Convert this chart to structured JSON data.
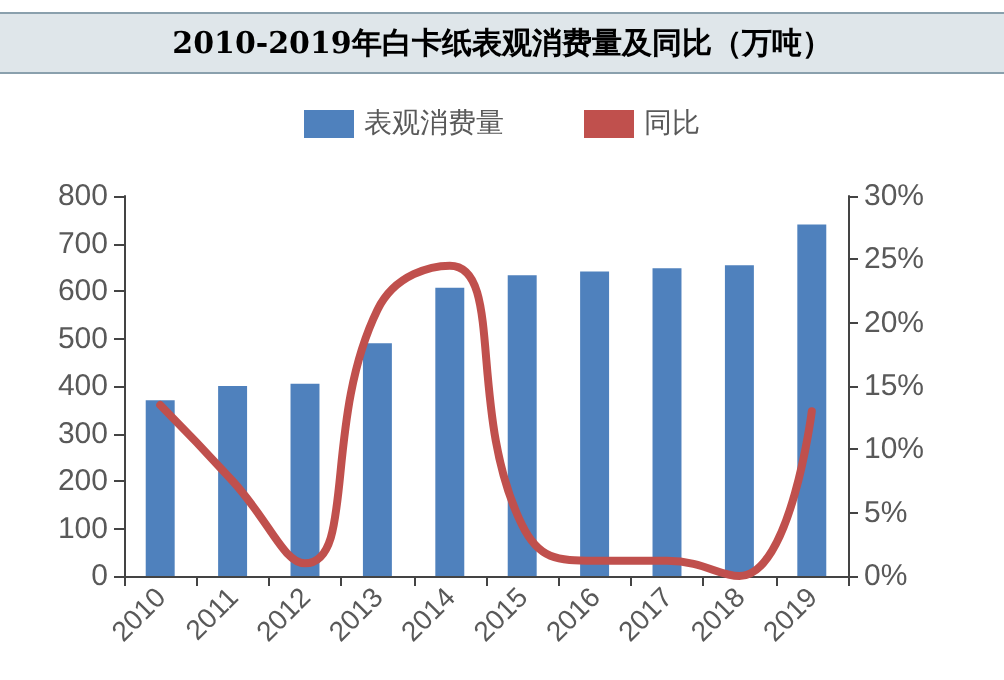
{
  "chart_data": {
    "type": "bar",
    "title": "2010-2019年白卡纸表观消费量及同比（万吨）",
    "categories": [
      "2010",
      "2011",
      "2012",
      "2013",
      "2014",
      "2015",
      "2016",
      "2017",
      "2018",
      "2019"
    ],
    "series": [
      {
        "name": "表观消费量",
        "color": "#4f81bd",
        "values": [
          370,
          400,
          405,
          490,
          607,
          633,
          641,
          648,
          654,
          740
        ]
      },
      {
        "name": "同比",
        "type": "line",
        "axis": "y2",
        "color": "#c0504d",
        "values": [
          13.5,
          7.5,
          1,
          21,
          24.5,
          4,
          1.2,
          1.2,
          0,
          13
        ]
      }
    ],
    "ylim": [
      0,
      800
    ],
    "yticks": [
      0,
      100,
      200,
      300,
      400,
      500,
      600,
      700,
      800
    ],
    "y2lim": [
      0,
      30
    ],
    "y2ticks": [
      {
        "value": 0,
        "label": "0%"
      },
      {
        "value": 5,
        "label": "5%"
      },
      {
        "value": 10,
        "label": "10%"
      },
      {
        "value": 15,
        "label": "15%"
      },
      {
        "value": 20,
        "label": "20%"
      },
      {
        "value": 25,
        "label": "25%"
      },
      {
        "value": 30,
        "label": "30%"
      }
    ],
    "legend": "top",
    "grid": false,
    "marker": "none",
    "line_style": "solid"
  }
}
